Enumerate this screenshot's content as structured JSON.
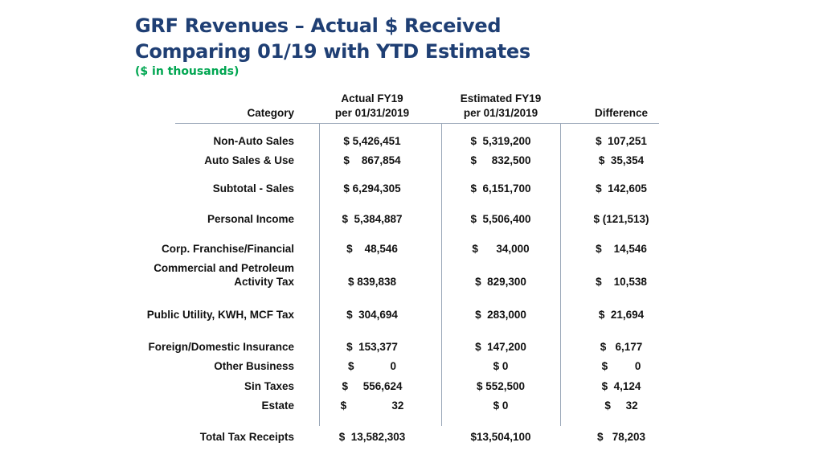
{
  "title": {
    "line1": "GRF Revenues – Actual $ Received",
    "line2": "Comparing 01/19 with YTD Estimates",
    "subtitle": "($ in thousands)"
  },
  "colors": {
    "title": "#1f3f74",
    "subtitle": "#00a651",
    "rule": "#9aa7b8"
  },
  "headers": {
    "category": "Category",
    "actual_l1": "Actual FY19",
    "actual_l2": "per 01/31/2019",
    "est_l1": "Estimated FY19",
    "est_l2": "per 01/31/2019",
    "diff": "Difference"
  },
  "rows": [
    {
      "cat": "Non-Auto Sales",
      "actual": "$ 5,426,451",
      "est": "$  5,319,200",
      "diff": "$  107,251"
    },
    {
      "cat": "Auto Sales & Use",
      "actual": "$    867,854",
      "est": "$     832,500",
      "diff": "$  35,354"
    },
    {
      "cat": "Subtotal - Sales",
      "actual": "$ 6,294,305",
      "est": "$  6,151,700",
      "diff": "$  142,605"
    },
    {
      "cat": "Personal Income",
      "actual": "$  5,384,887",
      "est": "$  5,506,400",
      "diff": "$ (121,513)"
    },
    {
      "cat": "Corp. Franchise/Financial",
      "actual": "$    48,546",
      "est": "$      34,000",
      "diff": "$    14,546"
    },
    {
      "cat": "Commercial and Petroleum",
      "cat2": "Activity Tax",
      "actual": "$ 839,838",
      "est": "$  829,300",
      "diff": "$    10,538"
    },
    {
      "cat": "Public Utility, KWH, MCF Tax",
      "actual": "$  304,694",
      "est": "$  283,000",
      "diff": "$  21,694"
    },
    {
      "cat": "Foreign/Domestic Insurance",
      "actual": "$  153,377",
      "est": "$  147,200",
      "diff": "$   6,177"
    },
    {
      "cat": "Other Business",
      "actual": "$            0",
      "est": "$ 0",
      "diff": "$         0"
    },
    {
      "cat": "Sin Taxes",
      "actual": "$     556,624",
      "est": "$ 552,500",
      "diff": "$  4,124"
    },
    {
      "cat": "Estate",
      "actual": "$               32",
      "est": "$ 0",
      "diff": "$     32"
    },
    {
      "cat": "Total Tax Receipts",
      "actual": "$  13,582,303",
      "est": "$13,504,100",
      "diff": "$   78,203"
    }
  ]
}
